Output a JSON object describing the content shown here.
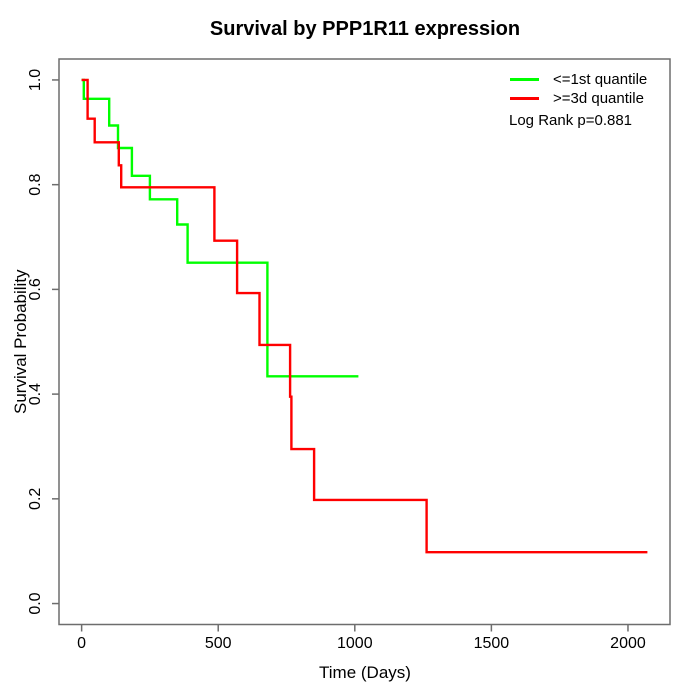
{
  "chart_data": {
    "type": "line",
    "subtype": "kaplan-meier-step-survival",
    "title": "Survival by PPP1R11 expression",
    "xlabel": "Time (Days)",
    "ylabel": "Survival Probability",
    "x_ticks": [
      0,
      500,
      1000,
      1500,
      2000
    ],
    "y_ticks": [
      "0.0",
      "0.2",
      "0.4",
      "0.6",
      "0.8",
      "1.0"
    ],
    "xlim": [
      0,
      2071
    ],
    "ylim": [
      0,
      1
    ],
    "grid": false,
    "legend_position": "top-right-inside",
    "background": "#ffffff",
    "axis_color": "#6d6d6d",
    "text_color": "#000000",
    "annotation": "Log Rank p=0.881",
    "series": [
      {
        "id": "first-quantile",
        "name": "<=1st quantile",
        "color": "#00ff00",
        "step_points": [
          [
            0,
            1.0
          ],
          [
            8,
            0.964
          ],
          [
            101,
            0.913
          ],
          [
            133,
            0.87
          ],
          [
            184,
            0.817
          ],
          [
            250,
            0.772
          ],
          [
            350,
            0.724
          ],
          [
            388,
            0.651
          ],
          [
            680,
            0.434
          ],
          [
            1013,
            0.434
          ]
        ]
      },
      {
        "id": "third-quantile",
        "name": ">=3d quantile",
        "color": "#ff0000",
        "step_points": [
          [
            0,
            1.0
          ],
          [
            22,
            0.926
          ],
          [
            48,
            0.881
          ],
          [
            136,
            0.837
          ],
          [
            145,
            0.795
          ],
          [
            486,
            0.693
          ],
          [
            569,
            0.593
          ],
          [
            651,
            0.494
          ],
          [
            763,
            0.395
          ],
          [
            768,
            0.295
          ],
          [
            851,
            0.198
          ],
          [
            1263,
            0.098
          ],
          [
            2071,
            0.098
          ]
        ]
      }
    ]
  }
}
